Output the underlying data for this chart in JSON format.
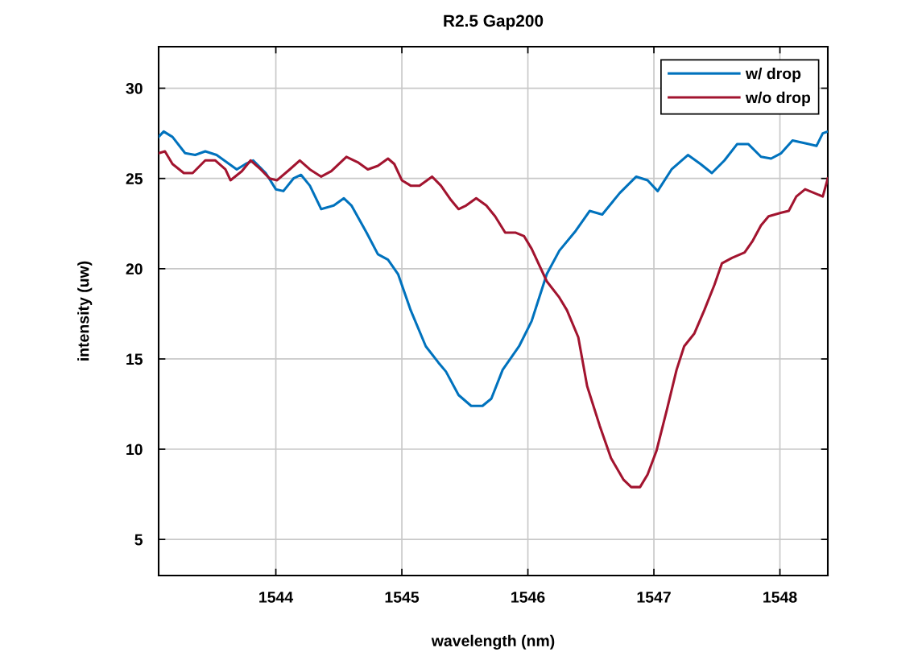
{
  "chart_data": {
    "type": "line",
    "title": "R2.5 Gap200",
    "xlabel": "wavelength (nm)",
    "ylabel": "intensity (uw)",
    "xlim": [
      1543.07,
      1548.38
    ],
    "xticks": [
      1544,
      1545,
      1546,
      1547,
      1548
    ],
    "ylim": [
      3,
      32.3
    ],
    "yticks": [
      5,
      10,
      15,
      20,
      25,
      30
    ],
    "grid": true,
    "legend": "top right",
    "marker": "none",
    "line_style": "solid",
    "series": [
      {
        "name": "w/ drop",
        "color": "#0072bd",
        "x": [
          1543.07,
          1543.11,
          1543.18,
          1543.28,
          1543.36,
          1543.44,
          1543.53,
          1543.63,
          1543.69,
          1543.76,
          1543.82,
          1543.92,
          1544.0,
          1544.06,
          1544.14,
          1544.2,
          1544.27,
          1544.36,
          1544.46,
          1544.54,
          1544.6,
          1544.72,
          1544.81,
          1544.89,
          1544.97,
          1545.07,
          1545.19,
          1545.29,
          1545.35,
          1545.45,
          1545.55,
          1545.64,
          1545.71,
          1545.8,
          1545.93,
          1546.03,
          1546.15,
          1546.25,
          1546.38,
          1546.49,
          1546.59,
          1546.73,
          1546.86,
          1546.95,
          1547.03,
          1547.14,
          1547.27,
          1547.37,
          1547.46,
          1547.56,
          1547.66,
          1547.75,
          1547.85,
          1547.93,
          1548.01,
          1548.1,
          1548.23,
          1548.29,
          1548.34,
          1548.38
        ],
        "values": [
          27.3,
          27.6,
          27.3,
          26.4,
          26.3,
          26.5,
          26.3,
          25.8,
          25.5,
          25.8,
          26.0,
          25.3,
          24.4,
          24.3,
          25.0,
          25.2,
          24.6,
          23.3,
          23.5,
          23.9,
          23.5,
          22.0,
          20.8,
          20.5,
          19.7,
          17.7,
          15.7,
          14.8,
          14.3,
          13.0,
          12.4,
          12.4,
          12.8,
          14.4,
          15.7,
          17.1,
          19.7,
          21.0,
          22.1,
          23.2,
          23.0,
          24.2,
          25.1,
          24.9,
          24.3,
          25.5,
          26.3,
          25.8,
          25.3,
          26.0,
          26.9,
          26.9,
          26.2,
          26.1,
          26.4,
          27.1,
          26.9,
          26.8,
          27.5,
          27.6
        ]
      },
      {
        "name": "w/o drop",
        "color": "#a2142f",
        "x": [
          1543.07,
          1543.12,
          1543.18,
          1543.27,
          1543.34,
          1543.44,
          1543.52,
          1543.6,
          1543.64,
          1543.73,
          1543.8,
          1543.88,
          1543.95,
          1544.01,
          1544.11,
          1544.19,
          1544.27,
          1544.36,
          1544.44,
          1544.56,
          1544.65,
          1544.73,
          1544.81,
          1544.89,
          1544.94,
          1545.0,
          1545.07,
          1545.14,
          1545.24,
          1545.31,
          1545.39,
          1545.45,
          1545.51,
          1545.59,
          1545.67,
          1545.74,
          1545.82,
          1545.9,
          1545.97,
          1546.03,
          1546.15,
          1546.25,
          1546.31,
          1546.4,
          1546.47,
          1546.57,
          1546.66,
          1546.76,
          1546.82,
          1546.89,
          1546.95,
          1547.02,
          1547.1,
          1547.18,
          1547.24,
          1547.32,
          1547.4,
          1547.48,
          1547.54,
          1547.62,
          1547.72,
          1547.78,
          1547.85,
          1547.91,
          1548.01,
          1548.07,
          1548.13,
          1548.2,
          1548.27,
          1548.34,
          1548.38
        ],
        "values": [
          26.4,
          26.5,
          25.8,
          25.3,
          25.3,
          26.0,
          26.0,
          25.5,
          24.9,
          25.4,
          26.0,
          25.5,
          25.0,
          24.9,
          25.5,
          26.0,
          25.5,
          25.1,
          25.4,
          26.2,
          25.9,
          25.5,
          25.7,
          26.1,
          25.8,
          24.9,
          24.6,
          24.6,
          25.1,
          24.6,
          23.8,
          23.3,
          23.5,
          23.9,
          23.5,
          22.9,
          22.0,
          22.0,
          21.8,
          21.1,
          19.3,
          18.4,
          17.7,
          16.2,
          13.5,
          11.3,
          9.5,
          8.3,
          7.9,
          7.9,
          8.6,
          9.9,
          12.1,
          14.4,
          15.7,
          16.4,
          17.7,
          19.1,
          20.3,
          20.6,
          20.9,
          21.5,
          22.4,
          22.9,
          23.1,
          23.2,
          24.0,
          24.4,
          24.2,
          24.0,
          25.0
        ]
      }
    ]
  }
}
